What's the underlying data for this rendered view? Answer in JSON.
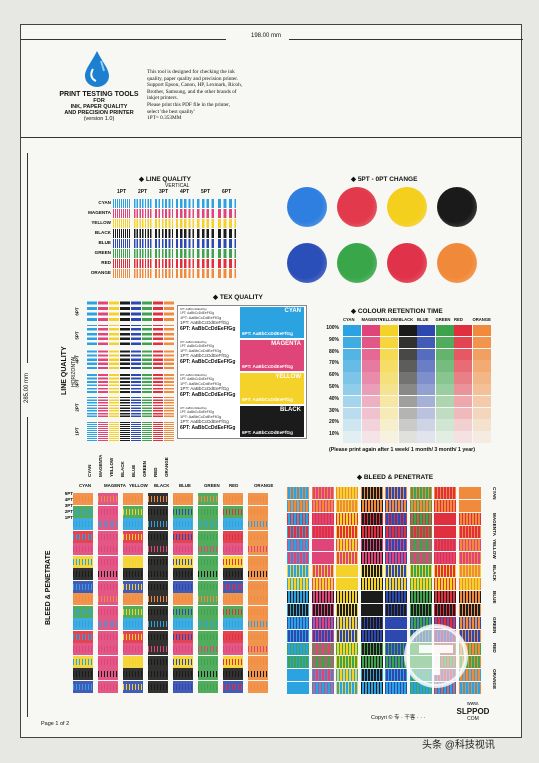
{
  "header": {
    "width_label": "198.00 mm",
    "height_label": "285.00 mm",
    "brand_title": "PRINT TESTING TOOLS",
    "brand_sub1": "FOR",
    "brand_sub2": "INK, PAPER QUALITY",
    "brand_sub3": "AND PRECISION PRINTER",
    "brand_version": "(version 1.0)",
    "desc_lines": [
      "This tool is designed for checking the ink",
      "quality, paper quality and precision printer.",
      "Support Epson, Canon, HP, Lexmark, Ricoh,",
      "Brother, Samsung, and the other brands of",
      "inkjet printers.",
      "Please print this PDF file in the printer,",
      "select 'the best quality'",
      "1PT= 0.353MM"
    ]
  },
  "line_quality": {
    "title": "LINE QUALITY",
    "subtitle": "VERTICAL",
    "pt_labels": [
      "1PT",
      "2PT",
      "3PT",
      "4PT",
      "5PT",
      "6PT"
    ],
    "rows": [
      "CYAN",
      "MAGENTA",
      "YELLOW",
      "BLACK",
      "BLUE",
      "GREEN",
      "RED",
      "ORANGE"
    ]
  },
  "pt_change": {
    "title": "5PT - 0PT CHANGE",
    "circle_colors_top": [
      "#2f7fe0",
      "#e23a4c",
      "#f4cf1e",
      "#1a1a1a"
    ],
    "circle_colors_bottom": [
      "#2b4fb8",
      "#3aa64a",
      "#e0334a",
      "#f08a3a"
    ]
  },
  "tex_quality": {
    "title": "TEX QUALITY",
    "blocks": [
      "CYAN",
      "MAGENTA",
      "YELLOW",
      "BLACK"
    ],
    "sample": "6PT: AaBbCcDdEeFfGg"
  },
  "colour_retention": {
    "title": "COLOUR RETENTION TIME",
    "columns": [
      "CYAN",
      "MAGENTA",
      "YELLOW",
      "BLACK",
      "BLUE",
      "GREEN",
      "RED",
      "ORANGE"
    ],
    "percents": [
      "100%",
      "90%",
      "80%",
      "70%",
      "60%",
      "50%",
      "40%",
      "30%",
      "20%",
      "10%"
    ],
    "note": "(Please print again after 1 week/ 1 month/ 3 month/ 1 year)"
  },
  "line_quality_h": {
    "title": "LINE QUALITY",
    "subtitle": "HORIZONTAL",
    "pt_labels": [
      "6PT",
      "5PT",
      "4PT",
      "3PT",
      "2PT",
      "1PT"
    ],
    "columns": [
      "CYAN",
      "MAGENTA",
      "YELLOW",
      "BLACK",
      "BLUE",
      "GREEN",
      "RED",
      "ORANGE"
    ]
  },
  "bleed_left": {
    "title": "BLEED & PENETRATE",
    "columns": [
      "CYAN",
      "MAGENTA",
      "YELLOW",
      "BLACK",
      "BLUE",
      "GREEN",
      "RED",
      "ORANGE"
    ],
    "pt_labels": [
      "5PT",
      "4PT",
      "3PT",
      "2PT",
      "1PT"
    ]
  },
  "bleed_right": {
    "title": "BLEED & PENETRATE",
    "rows": [
      "CYAN",
      "MAGENTA",
      "YELLOW",
      "BLACK",
      "BLUE",
      "GREEN",
      "RED",
      "ORANGE"
    ]
  },
  "footer": {
    "page": "Page 1 of 2",
    "copyright": "Copyri © 专 · 干客 · · ·",
    "site_small": "www.",
    "site_name": "SLPPOD",
    "site_tld": "COM",
    "watermark": "头条 @科技视讯"
  },
  "palette": {
    "cyan": "#2aa3e0",
    "magenta": "#e0457a",
    "yellow": "#f4d22a",
    "black": "#1b1b1b",
    "blue": "#2d49b0",
    "green": "#3ea34c",
    "red": "#e03040",
    "orange": "#f08a3c"
  }
}
